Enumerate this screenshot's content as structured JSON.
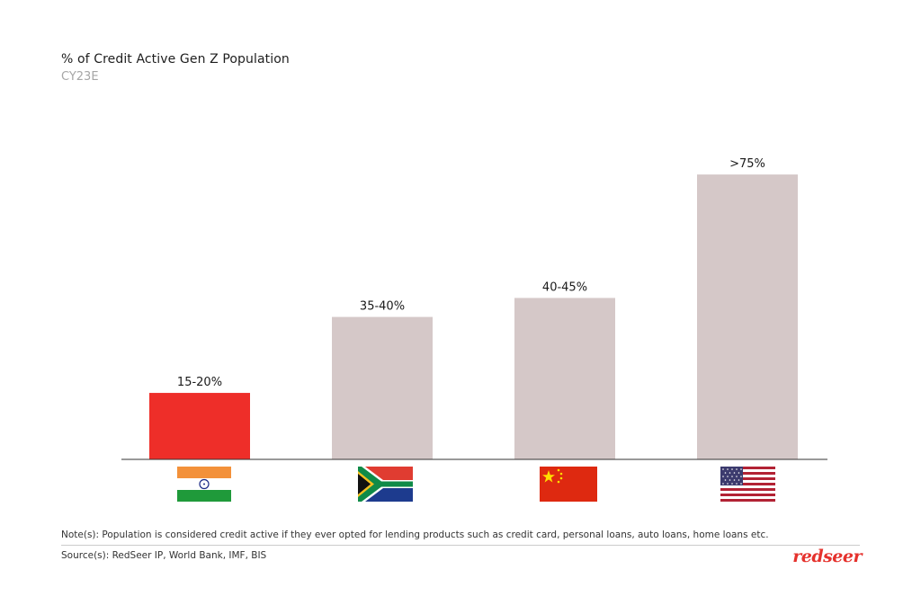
{
  "header": {
    "title": "% of Credit Active Gen Z Population",
    "subtitle": "CY23E"
  },
  "chart_data": {
    "type": "bar",
    "categories": [
      "India",
      "South Africa",
      "China",
      "USA"
    ],
    "category_icons": [
      "india-flag-icon",
      "south-africa-flag-icon",
      "china-flag-icon",
      "usa-flag-icon"
    ],
    "values": [
      17.5,
      37.5,
      42.5,
      75
    ],
    "value_labels": [
      "15-20%",
      "35-40%",
      "40-45%",
      ">75%"
    ],
    "colors": [
      "#ee2e29",
      "#d5c8c8",
      "#d5c8c8",
      "#d5c8c8"
    ],
    "ylim": [
      0,
      80
    ],
    "grid": false
  },
  "footer": {
    "note": "Note(s): Population is considered credit active if they ever opted for lending products such as credit card, personal loans, auto loans, home loans etc.",
    "source": "Source(s): RedSeer IP, World Bank, IMF, BIS",
    "brand": "redseer",
    "brand_color": "#e5322d"
  }
}
